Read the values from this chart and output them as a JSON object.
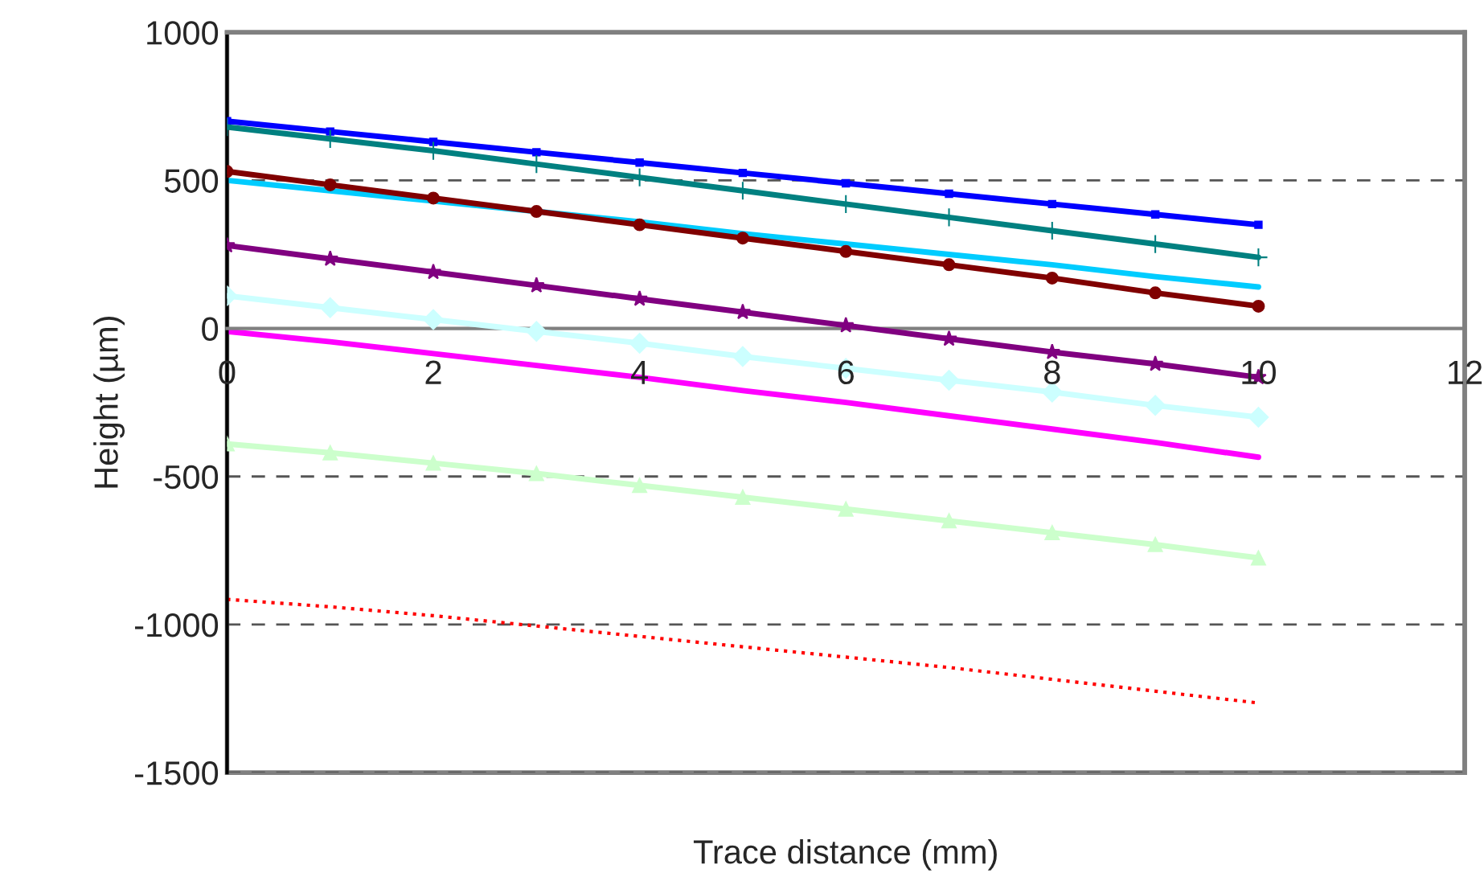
{
  "chart_data": {
    "type": "line",
    "xlabel": "Trace distance (mm)",
    "ylabel": "Height (µm)",
    "x": [
      0,
      1,
      2,
      3,
      4,
      5,
      6,
      7,
      8,
      9,
      10
    ],
    "series": [
      {
        "color": "#0000ff",
        "marker": "square",
        "values": [
          700,
          665,
          630,
          595,
          560,
          525,
          490,
          455,
          420,
          385,
          350
        ]
      },
      {
        "color": "#008080",
        "marker": "cross",
        "values": [
          680,
          640,
          600,
          555,
          510,
          465,
          420,
          375,
          330,
          285,
          240
        ]
      },
      {
        "color": "#800000",
        "marker": "circle",
        "values": [
          530,
          485,
          440,
          395,
          350,
          305,
          260,
          215,
          170,
          120,
          75
        ]
      },
      {
        "color": "#00ccff",
        "marker": "none",
        "values": [
          500,
          465,
          430,
          395,
          360,
          320,
          285,
          250,
          215,
          175,
          140
        ]
      },
      {
        "color": "#800080",
        "marker": "star",
        "values": [
          280,
          235,
          190,
          145,
          100,
          55,
          10,
          -35,
          -80,
          -120,
          -165
        ]
      },
      {
        "color": "#ccffff",
        "marker": "diamond",
        "values": [
          110,
          70,
          30,
          -10,
          -50,
          -95,
          -135,
          -175,
          -215,
          -260,
          -300
        ]
      },
      {
        "color": "#ff00ff",
        "marker": "none",
        "values": [
          -10,
          -45,
          -85,
          -125,
          -165,
          -210,
          -250,
          -295,
          -340,
          -385,
          -435
        ]
      },
      {
        "color": "#ccffcc",
        "marker": "triangle",
        "values": [
          -390,
          -420,
          -455,
          -490,
          -530,
          -570,
          -610,
          -650,
          -690,
          -730,
          -775
        ]
      },
      {
        "color": "#ff0000",
        "marker": "none",
        "line_style": "dotted",
        "values": [
          -915,
          -940,
          -970,
          -1005,
          -1040,
          -1075,
          -1110,
          -1145,
          -1185,
          -1225,
          -1265
        ]
      }
    ],
    "xlim": [
      0,
      12
    ],
    "xticks": [
      0,
      2,
      4,
      6,
      8,
      10,
      12
    ],
    "ylim": [
      -1500,
      1000
    ],
    "yticks": [
      -1500,
      -1000,
      -500,
      0,
      500,
      1000
    ],
    "grid": "y"
  }
}
